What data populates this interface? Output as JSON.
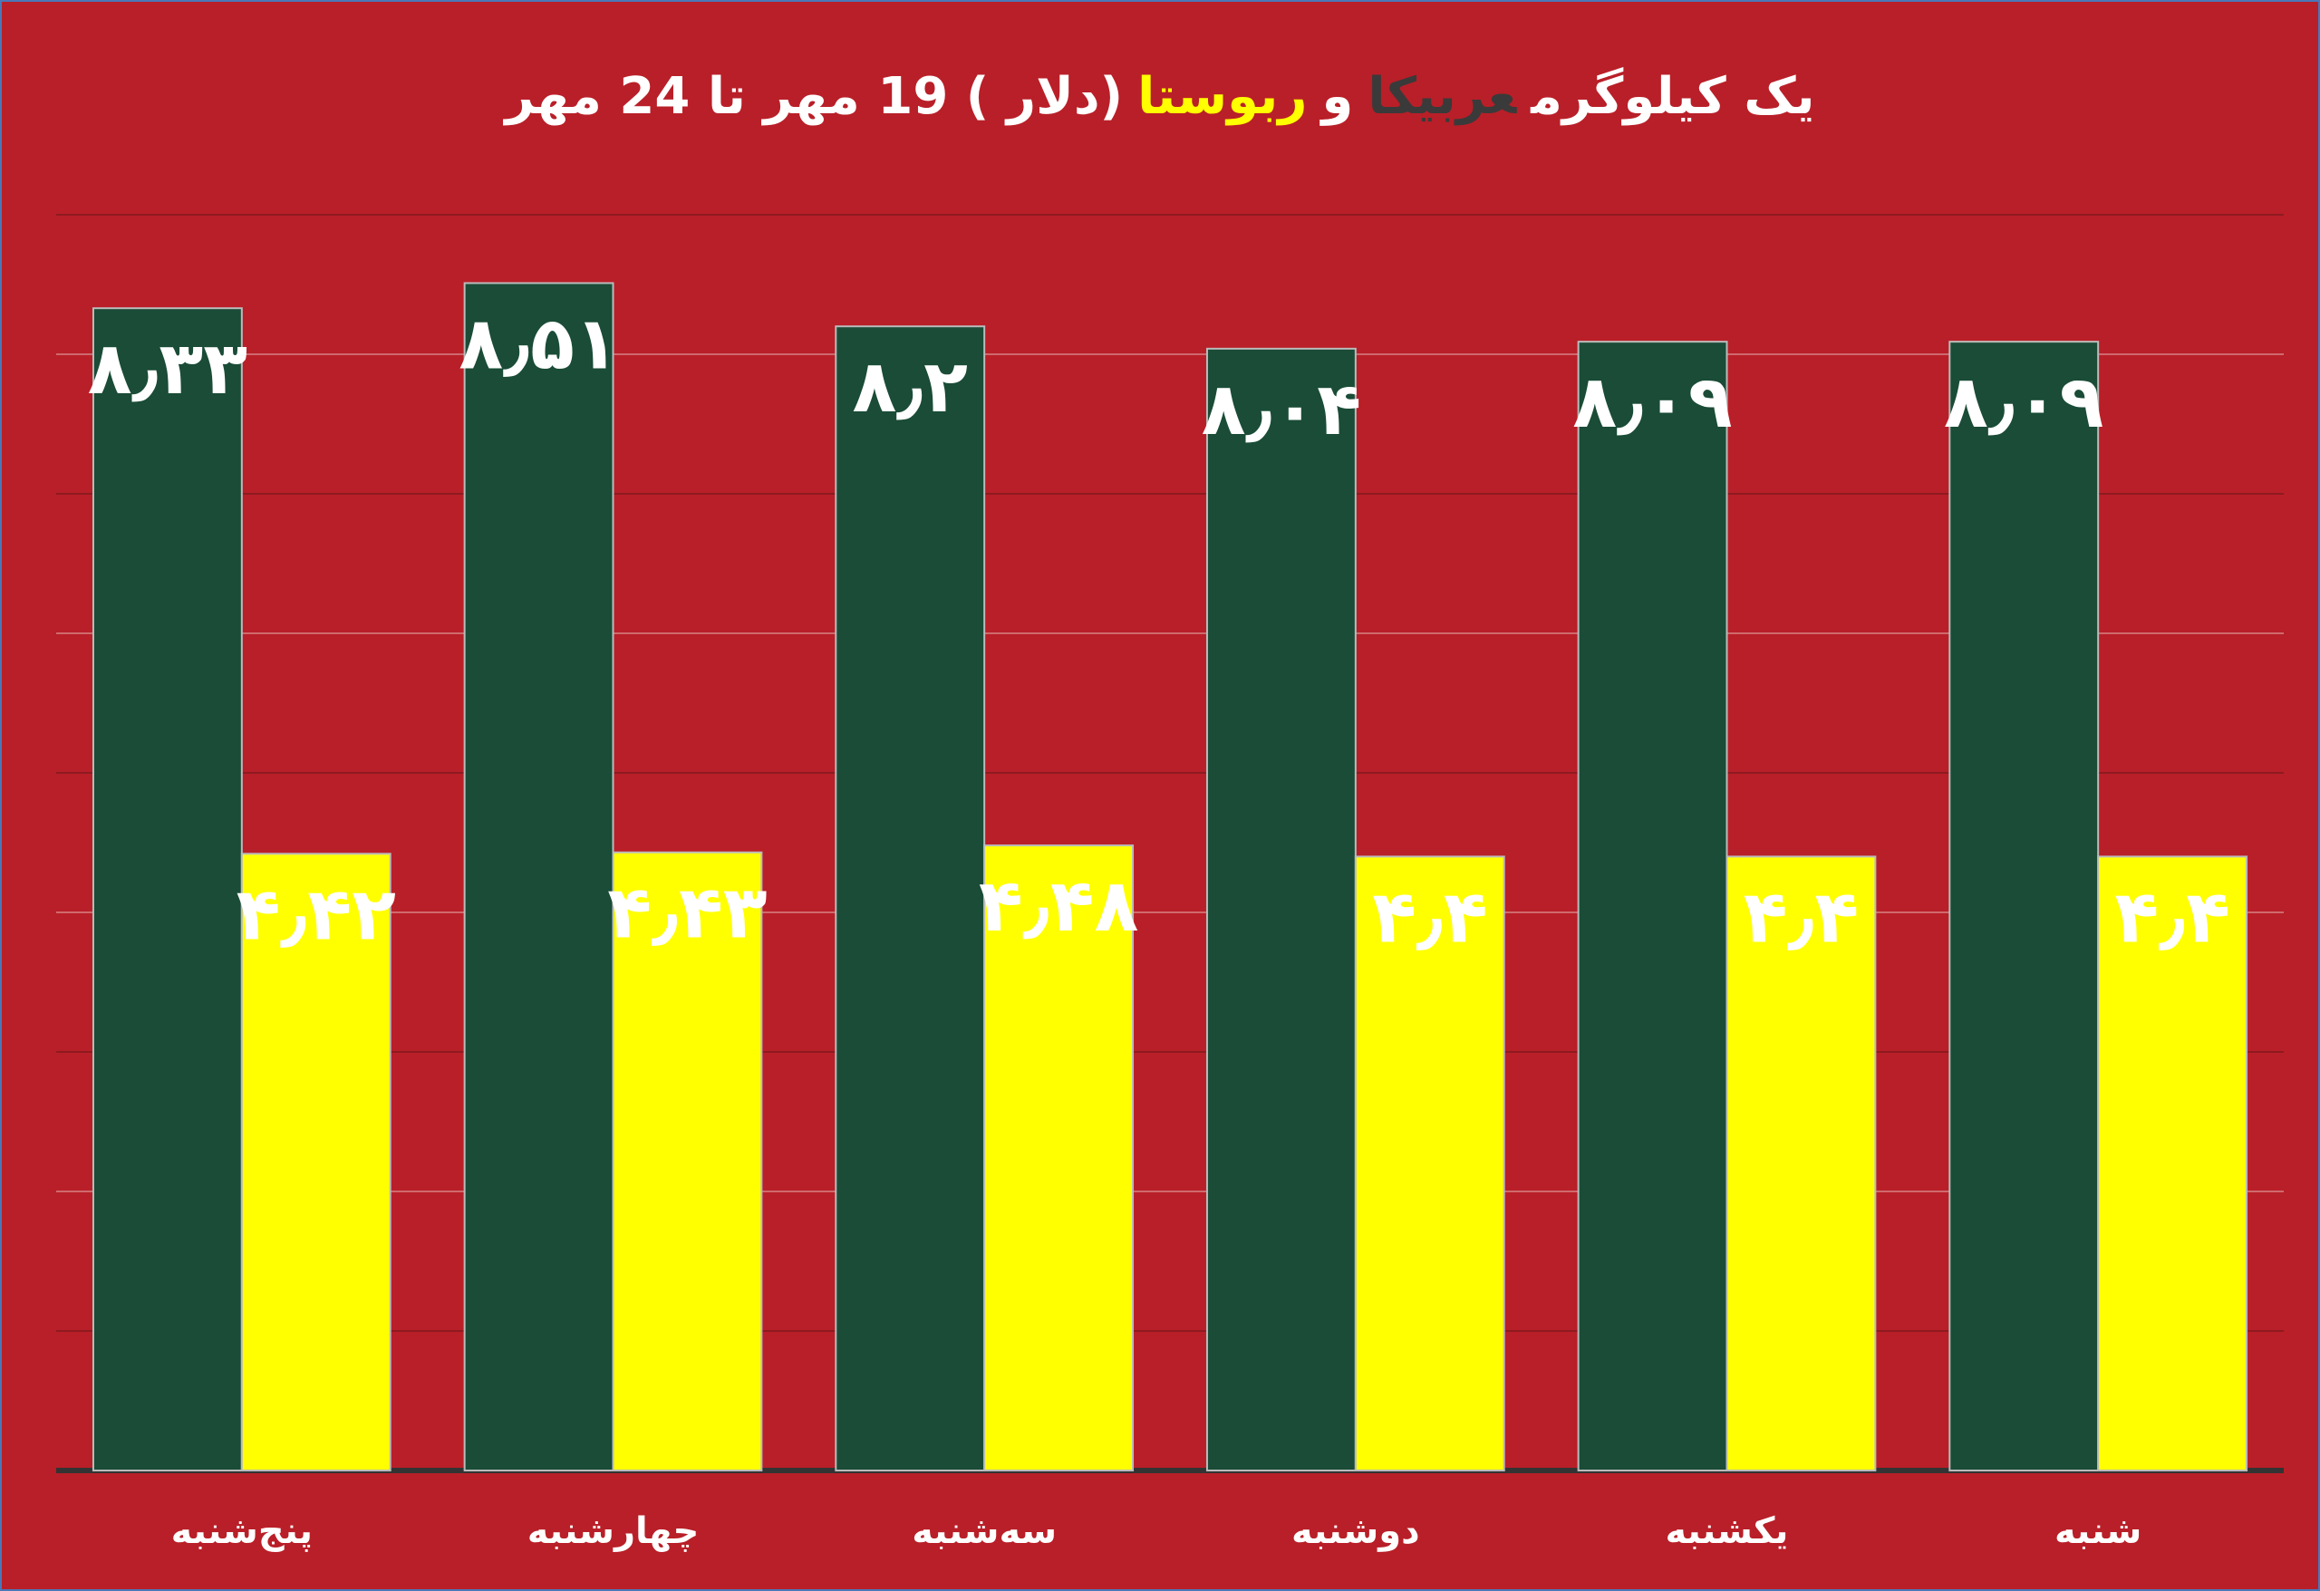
{
  "chart_data": {
    "type": "bar",
    "title_parts": [
      "یک کیلوگرم",
      "و",
      "(دلار ) 19 مهر  تا 24 مهر"
    ],
    "categories": [
      "پنج‌شنبه",
      "چهارشنبه",
      "سه‌شنبه",
      "دوشنبه",
      "یکشنبه",
      "شنبه"
    ],
    "series": [
      {
        "name": "عربیکا",
        "color": "#1a4c37",
        "title_color": "#3a3a3a",
        "values": [
          8.33,
          8.51,
          8.2,
          8.04,
          8.09,
          8.09
        ],
        "value_labels": [
          "۸٫۳۳",
          "۸٫۵۱",
          "۸٫۲",
          "۸٫۰۴",
          "۸٫۰۹",
          "۸٫۰۹"
        ]
      },
      {
        "name": "ربوستا",
        "color": "#ffff00",
        "title_color": "#ffff00",
        "values": [
          4.42,
          4.43,
          4.48,
          4.4,
          4.4,
          4.4
        ],
        "value_labels": [
          "۴٫۴۲",
          "۴٫۴۳",
          "۴٫۴۸",
          "۴٫۴",
          "۴٫۴",
          "۴٫۴"
        ]
      }
    ],
    "ylim": [
      0,
      9
    ],
    "yticks": [
      0,
      1,
      2,
      3,
      4,
      5,
      6,
      7,
      8,
      9
    ],
    "grid": true
  }
}
